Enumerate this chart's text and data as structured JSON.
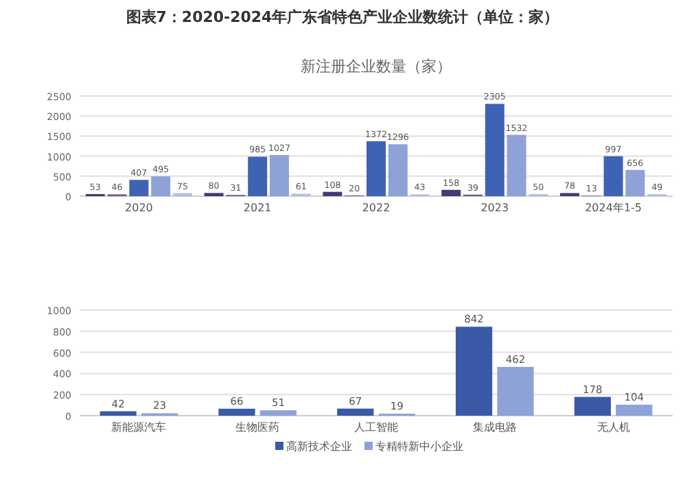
{
  "chart_data": [
    {
      "type": "bar",
      "title": "图表7：2020-2024年广东省特色产业企业数统计（单位：家）",
      "subtitle": "新注册企业数量（家）",
      "categories": [
        "2020",
        "2021",
        "2022",
        "2023",
        "2024年1-5"
      ],
      "series": [
        {
          "color": "#443a72",
          "values": [
            53,
            80,
            108,
            158,
            78
          ]
        },
        {
          "color": "#6a5c9c",
          "values": [
            46,
            31,
            20,
            39,
            13
          ]
        },
        {
          "color": "#3e62b4",
          "values": [
            407,
            985,
            1372,
            2305,
            997
          ]
        },
        {
          "color": "#8ea2d8",
          "values": [
            495,
            1027,
            1296,
            1532,
            656
          ]
        },
        {
          "color": "#b3bfe2",
          "values": [
            75,
            61,
            43,
            50,
            49
          ]
        }
      ],
      "ylim": [
        0,
        2500
      ],
      "yticks": [
        0,
        500,
        1000,
        1500,
        2000,
        2500
      ],
      "grid": "y",
      "data_labels": true
    },
    {
      "type": "bar",
      "categories": [
        "新能源汽车",
        "生物医药",
        "人工智能",
        "集成电路",
        "无人机"
      ],
      "series": [
        {
          "name": "高新技术企业",
          "color": "#3a5aa8",
          "values": [
            42,
            66,
            67,
            842,
            178
          ]
        },
        {
          "name": "专精特新中小企业",
          "color": "#8ea2d8",
          "values": [
            23,
            51,
            19,
            462,
            104
          ]
        }
      ],
      "ylim": [
        0,
        1000
      ],
      "yticks": [
        0,
        200,
        400,
        600,
        800,
        1000
      ],
      "grid": "y",
      "data_labels": true,
      "legend": "bottom"
    }
  ]
}
